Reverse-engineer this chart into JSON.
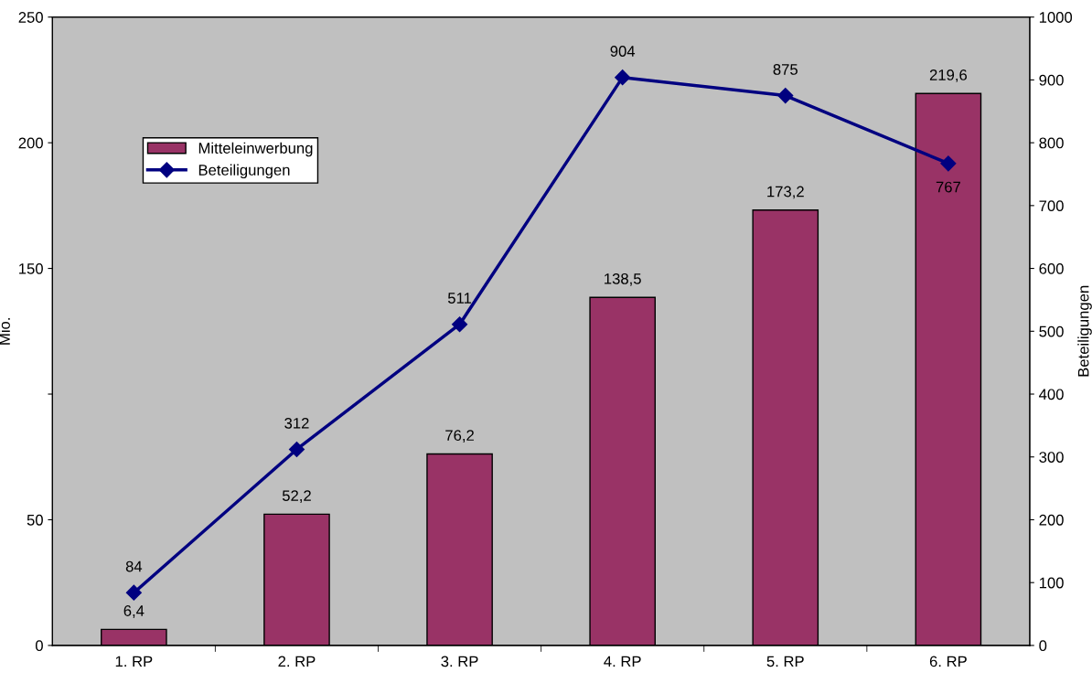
{
  "chart_data": {
    "type": "bar",
    "categories": [
      "1. RP",
      "2. RP",
      "3. RP",
      "4. RP",
      "5. RP",
      "6. RP"
    ],
    "ylabel": "Mio.",
    "y2label": "Beteiligungen",
    "ylim": [
      0,
      250
    ],
    "yticks": [
      0,
      50,
      {
        "value": 100,
        "label": null
      },
      150,
      200,
      250
    ],
    "y2lim": [
      0,
      1000
    ],
    "y2ticks": [
      0,
      100,
      200,
      300,
      400,
      500,
      600,
      700,
      800,
      900,
      1000
    ],
    "legend": "top left",
    "grid": false,
    "series": [
      {
        "name": "Mitteleinwerbung",
        "color": "#993366",
        "values": [
          6.4,
          52.2,
          76.2,
          138.5,
          173.2,
          219.6
        ],
        "value_labels": [
          "6,4",
          "52,2",
          "76,2",
          "138,5",
          "173,2",
          "219,6"
        ]
      },
      {
        "name": "Beteiligungen",
        "type": "line",
        "axis": "y2",
        "color": "#000080",
        "marker": "diamond",
        "line_style": "solid",
        "values": [
          84,
          312,
          511,
          904,
          875,
          767
        ],
        "value_labels": [
          "84",
          "312",
          "511",
          "904",
          "875",
          "767"
        ]
      }
    ]
  }
}
